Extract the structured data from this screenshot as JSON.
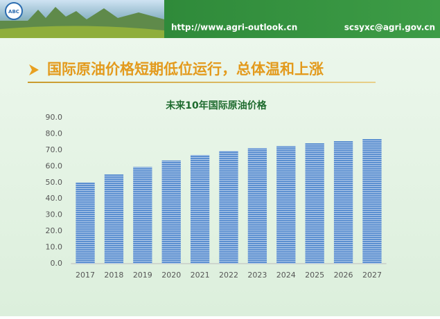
{
  "header": {
    "logo": "ABC",
    "url": "http://www.agri-outlook.cn",
    "email": "scsyxc@agri.gov.cn"
  },
  "heading": "国际原油价格短期低位运行，总体温和上涨",
  "chart_data": {
    "type": "bar",
    "title": "未来10年国际原油价格",
    "categories": [
      "2017",
      "2018",
      "2019",
      "2020",
      "2021",
      "2022",
      "2023",
      "2024",
      "2025",
      "2026",
      "2027"
    ],
    "values": [
      50,
      55,
      59.6,
      63.6,
      67,
      69.5,
      71.2,
      72.5,
      74.2,
      75.5,
      76.8
    ],
    "color": "#5b8fd0",
    "ylim": [
      0,
      90
    ],
    "yticks": [
      {
        "value": 0,
        "label": "0.0"
      },
      {
        "value": 10,
        "label": "10.0"
      },
      {
        "value": 20,
        "label": "20.0"
      },
      {
        "value": 30,
        "label": "30.0"
      },
      {
        "value": 40,
        "label": "40.0"
      },
      {
        "value": 50,
        "label": "50.0"
      },
      {
        "value": 60,
        "label": "60.0"
      },
      {
        "value": 70,
        "label": "70.0"
      },
      {
        "value": 80,
        "label": "80.0"
      },
      {
        "value": 90,
        "label": "90.0"
      }
    ],
    "grid": false
  }
}
